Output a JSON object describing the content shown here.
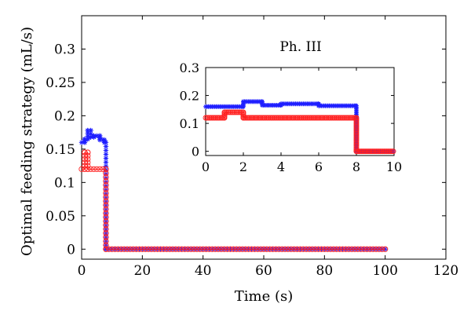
{
  "chart_data": [
    {
      "panel": "main",
      "type": "line",
      "xlabel": "Time (s)",
      "ylabel": "Optimal feeding strategy (mL/s)",
      "xlim": [
        0,
        120
      ],
      "ylim": [
        -0.015,
        0.35
      ],
      "xticks": [
        0,
        20,
        40,
        60,
        80,
        100,
        120
      ],
      "yticks": [
        0,
        0.05,
        0.1,
        0.15,
        0.2,
        0.25,
        0.3
      ],
      "xtick_labels": [
        "0",
        "20",
        "40",
        "60",
        "80",
        "100",
        "120"
      ],
      "ytick_labels": [
        "0",
        "0.05",
        "0.1",
        "0.15",
        "0.2",
        "0.25",
        "0.3"
      ],
      "series": [
        {
          "marker": "asterisk",
          "color": "#1f1fff",
          "x": [
            0,
            1,
            1,
            2,
            2,
            3,
            3,
            4,
            4,
            6,
            6,
            7.5,
            7.5,
            8,
            8,
            100
          ],
          "y": [
            0.16,
            0.16,
            0.165,
            0.165,
            0.178,
            0.178,
            0.168,
            0.168,
            0.17,
            0.17,
            0.164,
            0.164,
            0.16,
            0.16,
            0,
            0
          ]
        },
        {
          "marker": "circle",
          "color": "#ff2020",
          "x": [
            0,
            1,
            1,
            2,
            2,
            8,
            8,
            100
          ],
          "y": [
            0.12,
            0.12,
            0.145,
            0.145,
            0.12,
            0.12,
            0,
            0
          ]
        }
      ]
    },
    {
      "panel": "inset",
      "type": "line",
      "title": "Ph. III",
      "xlim": [
        0,
        10
      ],
      "ylim": [
        -0.015,
        0.3
      ],
      "xticks": [
        0,
        2,
        4,
        6,
        8,
        10
      ],
      "yticks": [
        0,
        0.1,
        0.2,
        0.3
      ],
      "xtick_labels": [
        "0",
        "2",
        "4",
        "6",
        "8",
        "10"
      ],
      "ytick_labels": [
        "0",
        "0.1",
        "0.2",
        "0.3"
      ],
      "series": [
        {
          "marker": "asterisk",
          "color": "#1f1fff",
          "x": [
            0,
            2,
            2,
            3,
            3,
            4,
            4,
            6,
            6,
            8,
            8,
            10
          ],
          "y": [
            0.16,
            0.16,
            0.178,
            0.178,
            0.165,
            0.165,
            0.17,
            0.17,
            0.163,
            0.163,
            0,
            0
          ]
        },
        {
          "marker": "circle",
          "color": "#ff2020",
          "x": [
            0,
            1,
            1,
            2,
            2,
            8,
            8,
            10
          ],
          "y": [
            0.12,
            0.12,
            0.14,
            0.14,
            0.12,
            0.12,
            0,
            0
          ]
        }
      ]
    }
  ]
}
